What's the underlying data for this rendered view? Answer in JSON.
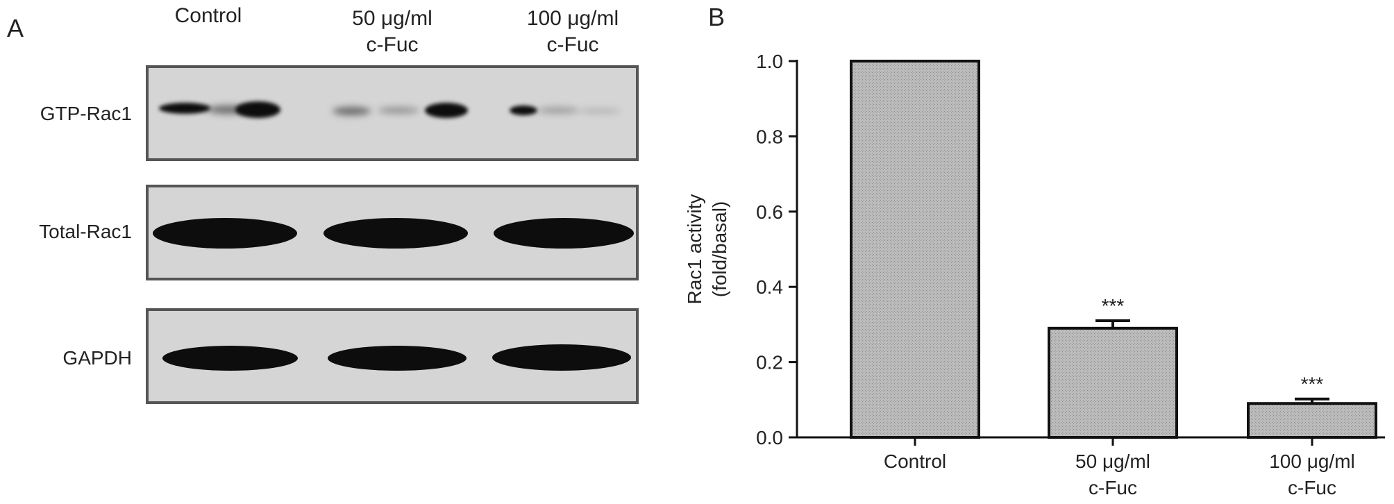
{
  "panel_a": {
    "letter": "A",
    "lanes": [
      {
        "line1": "",
        "line2": "Control"
      },
      {
        "line1": "50 μg/ml",
        "line2": "c-Fuc"
      },
      {
        "line1": "100 μg/ml",
        "line2": "c-Fuc"
      }
    ],
    "blots": [
      {
        "label": "GTP-Rac1"
      },
      {
        "label": "Total-Rac1"
      },
      {
        "label": "GAPDH"
      }
    ]
  },
  "panel_b": {
    "letter": "B"
  },
  "chart_data": {
    "type": "bar",
    "categories": [
      "Control",
      "50 μg/ml\nc-Fuc",
      "100 μg/ml\nc-Fuc"
    ],
    "values": [
      1.0,
      0.29,
      0.09
    ],
    "error": [
      0.0,
      0.02,
      0.012
    ],
    "annotations": [
      "",
      "***",
      "***"
    ],
    "ylabel_line1": "Rac1 activity",
    "ylabel_line2": "(fold/basal)",
    "ylim": [
      0,
      1.0
    ],
    "yticks": [
      "0.0",
      "0.2",
      "0.4",
      "0.6",
      "0.8",
      "1.0"
    ],
    "bar_color": "#b3b3b3",
    "edge_color": "#111111"
  }
}
